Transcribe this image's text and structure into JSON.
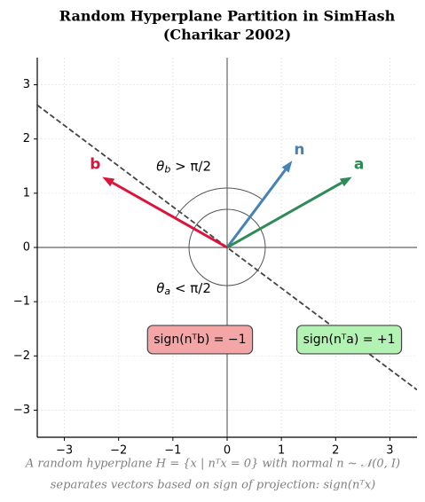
{
  "chart_data": {
    "type": "vector",
    "title": [
      "Random Hyperplane Partition in SimHash",
      "(Charikar 2002)"
    ],
    "xlim": [
      -3.5,
      3.5
    ],
    "ylim": [
      -3.5,
      3.5
    ],
    "xticks": [
      {
        "value": -3,
        "label": "−3"
      },
      {
        "value": -2,
        "label": "−2"
      },
      {
        "value": -1,
        "label": "−1"
      },
      0,
      1,
      2,
      3
    ],
    "yticks": [
      {
        "value": -3,
        "label": "−3"
      },
      {
        "value": -2,
        "label": "−2"
      },
      {
        "value": -1,
        "label": "−1"
      },
      0,
      1,
      2,
      3
    ],
    "grid": true,
    "vectors": [
      {
        "name": "n",
        "color": "#4682b4",
        "x": 1.2,
        "y": 1.6
      },
      {
        "name": "a",
        "color": "#2e8b57",
        "x": 2.3,
        "y": 1.3
      },
      {
        "name": "b",
        "color": "#dc143c",
        "x": -2.3,
        "y": 1.3
      }
    ],
    "angle_labels": [
      {
        "symbol": "θ",
        "sub": "b",
        "rest": " > π/2"
      },
      {
        "symbol": "θ",
        "sub": "a",
        "rest": " < π/2"
      }
    ],
    "sign_boxes": [
      {
        "text": "sign(nᵀb) = −1",
        "fill": "#f4a6a6"
      },
      {
        "text": "sign(nᵀa) = +1",
        "fill": "#b2f2b2"
      }
    ],
    "caption": [
      "A random hyperplane H = {x | nᵀx = 0} with normal n ∼ 𝒩(0, I)",
      "separates vectors based on sign of projection: sign(nᵀx)"
    ]
  }
}
